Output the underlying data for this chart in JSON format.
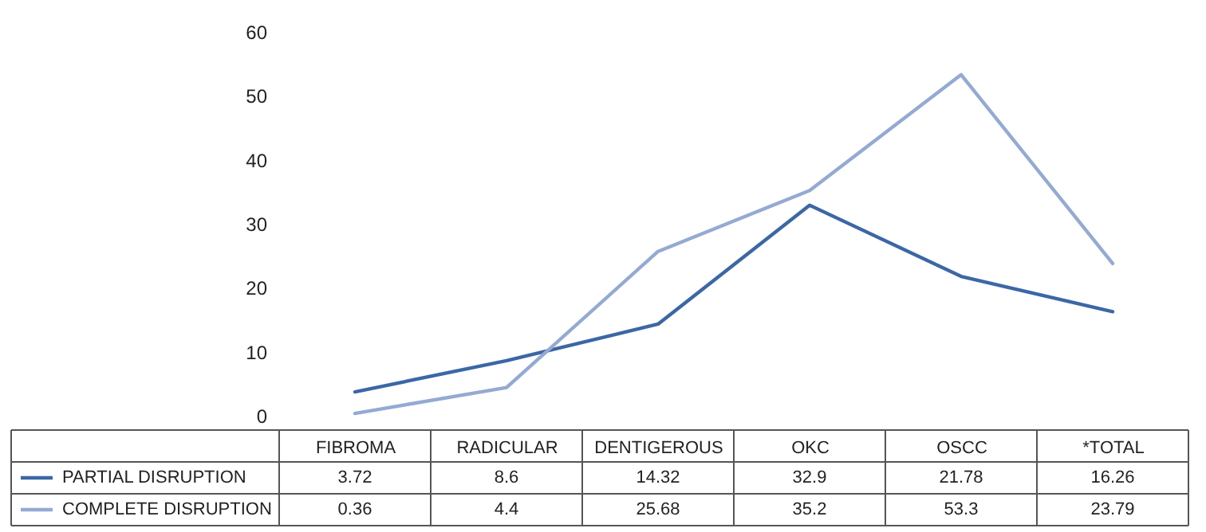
{
  "chart_data": {
    "type": "line",
    "categories": [
      "FIBROMA",
      "RADICULAR",
      "DENTIGEROUS",
      "OKC",
      "OSCC",
      "*TOTAL"
    ],
    "series": [
      {
        "name": "PARTIAL DISRUPTION",
        "color": "#3c67a5",
        "values": [
          3.72,
          8.6,
          14.32,
          32.9,
          21.78,
          16.26
        ]
      },
      {
        "name": "COMPLETE DISRUPTION",
        "color": "#94aad3",
        "values": [
          0.36,
          4.4,
          25.68,
          35.2,
          53.3,
          23.79
        ]
      }
    ],
    "ylim": [
      0,
      60
    ],
    "yticks": [
      0,
      10,
      20,
      30,
      40,
      50,
      60
    ],
    "grid": false,
    "legend": "bottom",
    "data_labels": true,
    "marker": "none",
    "line_style": "solid"
  }
}
